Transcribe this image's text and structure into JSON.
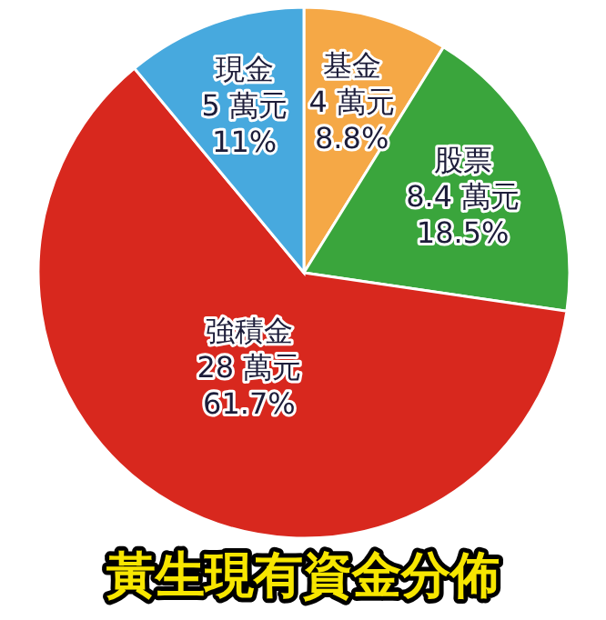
{
  "chart_data": {
    "type": "pie",
    "title": "黃生現有資金分佈",
    "categories": [
      "基金",
      "股票",
      "強積金",
      "現金"
    ],
    "values": [
      4,
      8.4,
      28,
      5
    ],
    "value_labels": [
      "4 萬元\n8.8%",
      "8.4 萬元\n18.5%",
      "28 萬元\n61.7%",
      "5 萬元\n11%"
    ],
    "colors": [
      "#f5a846",
      "#3aa53c",
      "#d8281e",
      "#47a9de"
    ],
    "legend": false
  }
}
